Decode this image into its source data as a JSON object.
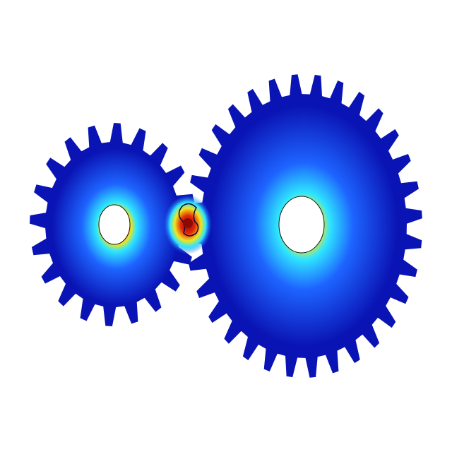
{
  "scene": {
    "subject": "gear-pair-stress-plot",
    "colors": {
      "background": "#ffffff",
      "hole": "#ffffff",
      "stress_low": "#0a14b4",
      "stress_mid": "#1e64ff",
      "stress_cyan": "#2ee6ff",
      "stress_yellow": "#f0e61e",
      "stress_high": "#e6280a",
      "stress_peak": "#8c0a00"
    },
    "gears": [
      {
        "name": "small-gear",
        "teeth": 20
      },
      {
        "name": "large-gear",
        "teeth": 32
      }
    ]
  }
}
